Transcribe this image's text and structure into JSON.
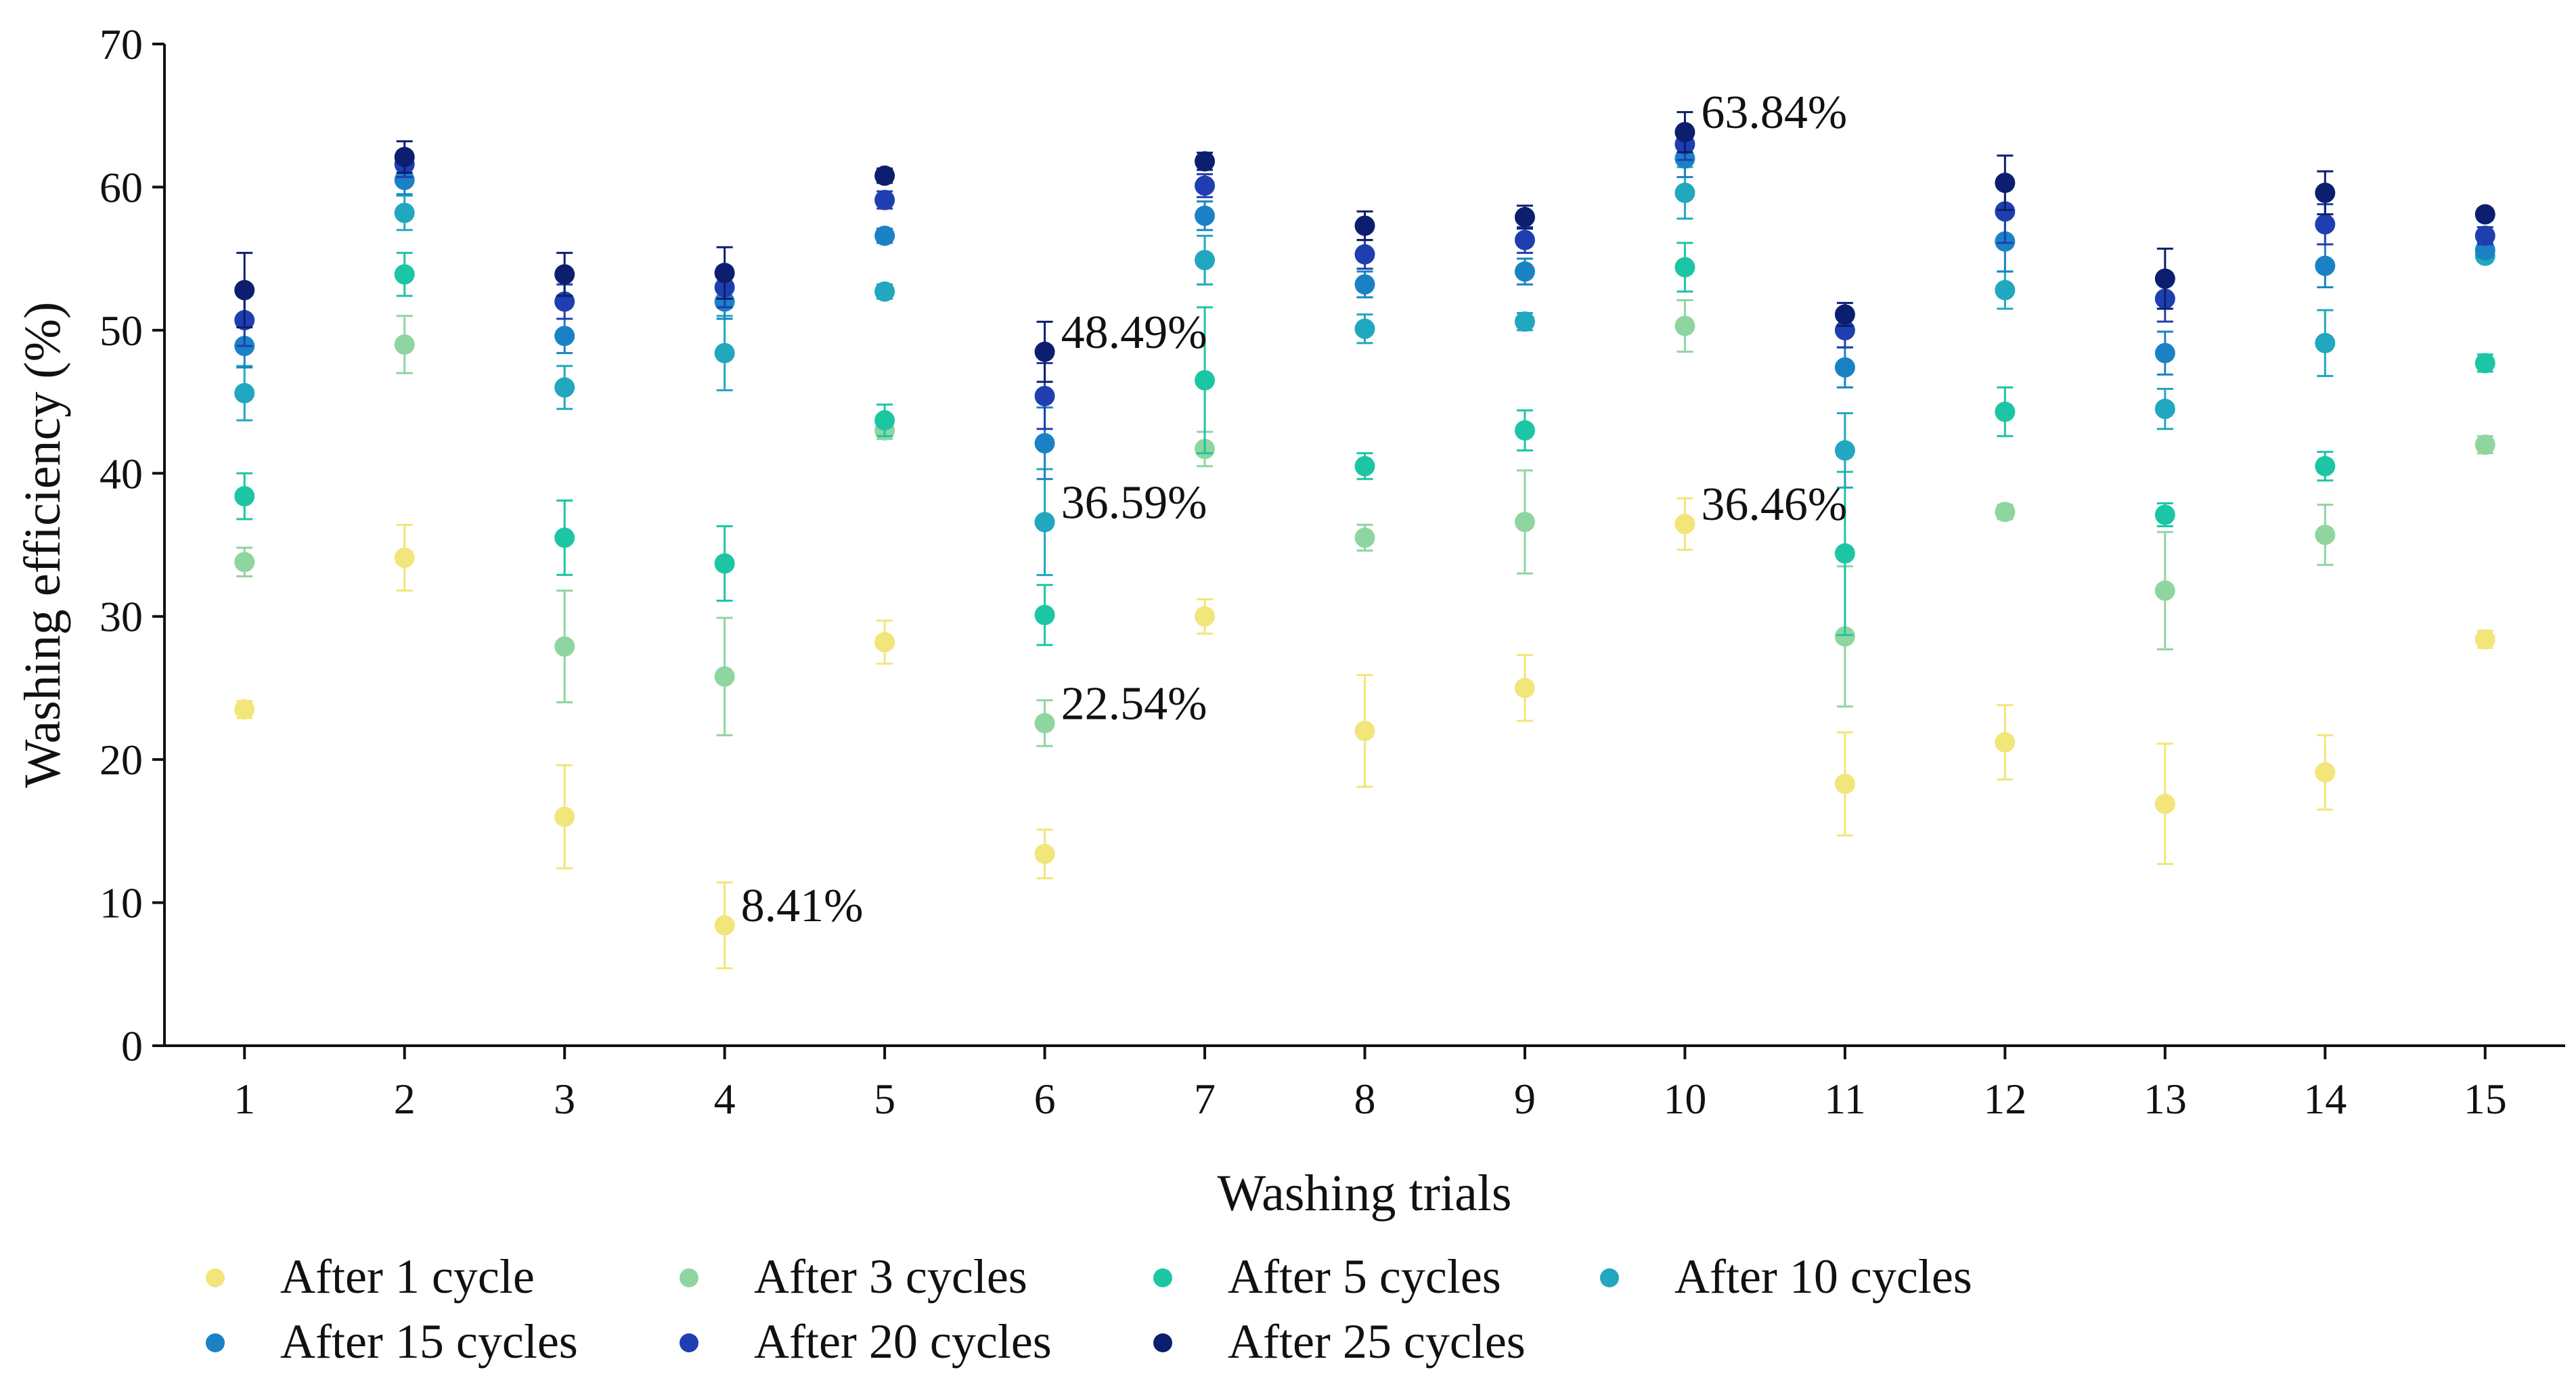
{
  "chart_data": {
    "type": "scatter",
    "title": "",
    "xlabel": "Washing trials",
    "ylabel": "Washing efficiency (%)",
    "xlim": [
      0.5,
      15.5
    ],
    "ylim": [
      0,
      70
    ],
    "x": [
      1,
      2,
      3,
      4,
      5,
      6,
      7,
      8,
      9,
      10,
      11,
      12,
      13,
      14,
      15
    ],
    "x_ticks": [
      "1",
      "2",
      "3",
      "4",
      "5",
      "6",
      "7",
      "8",
      "9",
      "10",
      "11",
      "12",
      "13",
      "14",
      "15"
    ],
    "y_ticks": [
      "0",
      "10",
      "20",
      "30",
      "40",
      "50",
      "60",
      "70"
    ],
    "grid": false,
    "legend_position": "bottom",
    "series": [
      {
        "name": "After 1 cycle",
        "color": "#f2e57a",
        "values": [
          23.5,
          34.1,
          16.0,
          8.41,
          28.2,
          13.4,
          30.0,
          22.0,
          25.0,
          36.46,
          18.3,
          21.2,
          16.9,
          19.1,
          28.4
        ],
        "errors": [
          0.6,
          2.3,
          3.6,
          3.0,
          1.5,
          1.7,
          1.2,
          3.9,
          2.3,
          1.8,
          3.6,
          2.6,
          4.2,
          2.6,
          0.6
        ]
      },
      {
        "name": "After 3 cycles",
        "color": "#8fd5a0",
        "values": [
          33.8,
          49.0,
          27.9,
          25.8,
          43.0,
          22.54,
          41.7,
          35.5,
          36.6,
          50.3,
          28.6,
          37.3,
          31.8,
          35.7,
          42.0
        ],
        "errors": [
          1.0,
          2.0,
          3.9,
          4.1,
          0.6,
          1.6,
          1.2,
          0.9,
          3.6,
          1.8,
          4.9,
          0.5,
          4.1,
          2.1,
          0.6
        ]
      },
      {
        "name": "After 5 cycles",
        "color": "#1cc6a4",
        "values": [
          38.4,
          53.9,
          35.5,
          33.7,
          43.7,
          30.1,
          46.5,
          40.5,
          43.0,
          54.4,
          34.4,
          44.3,
          37.1,
          40.5,
          47.7
        ],
        "errors": [
          1.6,
          1.5,
          2.6,
          2.6,
          1.1,
          2.1,
          5.1,
          0.9,
          1.4,
          1.7,
          5.7,
          1.7,
          0.8,
          1.0,
          0.6
        ]
      },
      {
        "name": "After 10 cycles",
        "color": "#21a7bf",
        "values": [
          45.6,
          58.2,
          46.0,
          48.4,
          52.7,
          36.59,
          54.9,
          50.1,
          50.6,
          59.6,
          41.6,
          52.8,
          44.5,
          49.1,
          55.2
        ],
        "errors": [
          1.9,
          1.2,
          1.5,
          2.6,
          0.5,
          3.7,
          1.7,
          1.0,
          0.6,
          1.8,
          2.6,
          1.3,
          1.4,
          2.3,
          0.4
        ]
      },
      {
        "name": "After 15 cycles",
        "color": "#1a82c4",
        "values": [
          48.9,
          60.5,
          49.6,
          52.0,
          56.6,
          42.1,
          58.0,
          53.2,
          54.1,
          62.0,
          47.4,
          56.2,
          48.4,
          54.5,
          55.6
        ],
        "errors": [
          1.5,
          1.0,
          1.2,
          1.2,
          0.5,
          2.5,
          1.0,
          0.9,
          0.9,
          1.3,
          1.4,
          2.1,
          1.5,
          1.5,
          0.5
        ]
      },
      {
        "name": "After 20 cycles",
        "color": "#1f3fb0",
        "values": [
          50.7,
          61.6,
          52.0,
          53.0,
          59.1,
          45.4,
          60.1,
          55.3,
          56.3,
          63.0,
          50.0,
          58.3,
          52.2,
          57.4,
          56.6
        ],
        "errors": [
          1.8,
          0.9,
          1.2,
          1.4,
          0.6,
          2.3,
          0.8,
          1.0,
          0.9,
          1.1,
          1.2,
          2.2,
          1.6,
          1.4,
          0.6
        ]
      },
      {
        "name": "After 25 cycles",
        "color": "#0c1f6e",
        "values": [
          52.8,
          62.1,
          53.9,
          54.0,
          60.8,
          48.49,
          61.8,
          57.3,
          57.9,
          63.84,
          51.1,
          60.3,
          53.6,
          59.6,
          58.1
        ],
        "errors": [
          2.6,
          1.1,
          1.5,
          1.8,
          0.5,
          2.1,
          0.6,
          1.0,
          0.8,
          1.4,
          0.8,
          1.9,
          2.1,
          1.5,
          0.4
        ]
      }
    ],
    "annotations": [
      {
        "text": "8.41%",
        "x": 4,
        "y": 8.41
      },
      {
        "text": "22.54%",
        "x": 6,
        "y": 22.54
      },
      {
        "text": "36.59%",
        "x": 6,
        "y": 36.59
      },
      {
        "text": "48.49%",
        "x": 6,
        "y": 48.49
      },
      {
        "text": "36.46%",
        "x": 10,
        "y": 36.46
      },
      {
        "text": "63.84%",
        "x": 10,
        "y": 63.84
      }
    ]
  }
}
